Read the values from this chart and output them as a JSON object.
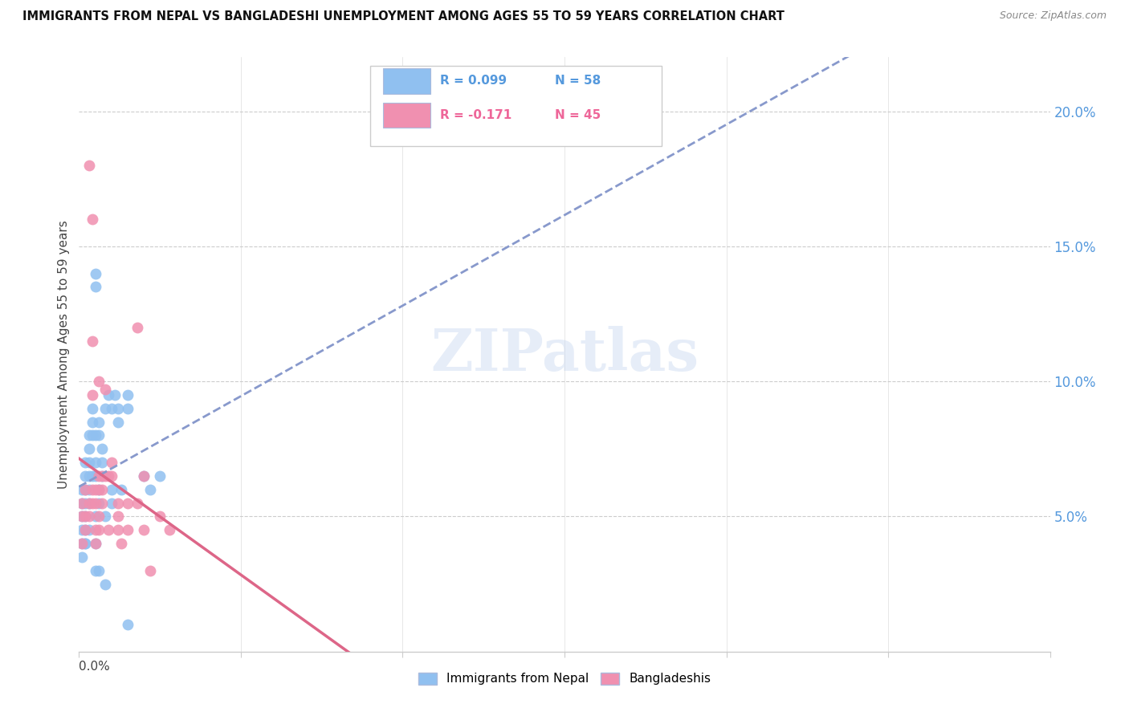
{
  "title": "IMMIGRANTS FROM NEPAL VS BANGLADESHI UNEMPLOYMENT AMONG AGES 55 TO 59 YEARS CORRELATION CHART",
  "source": "Source: ZipAtlas.com",
  "ylabel": "Unemployment Among Ages 55 to 59 years",
  "right_yticks": [
    "5.0%",
    "10.0%",
    "15.0%",
    "20.0%"
  ],
  "right_ytick_vals": [
    0.05,
    0.1,
    0.15,
    0.2
  ],
  "nepal_color": "#90c0f0",
  "bangla_color": "#f090b0",
  "trendline_nepal_color": "#8899cc",
  "trendline_bangla_color": "#dd6688",
  "xlim": [
    0.0,
    0.3
  ],
  "ylim": [
    0.0,
    0.22
  ],
  "nepal_scatter": [
    [
      0.001,
      0.04
    ],
    [
      0.001,
      0.035
    ],
    [
      0.001,
      0.05
    ],
    [
      0.001,
      0.06
    ],
    [
      0.001,
      0.045
    ],
    [
      0.001,
      0.055
    ],
    [
      0.002,
      0.065
    ],
    [
      0.002,
      0.07
    ],
    [
      0.002,
      0.06
    ],
    [
      0.002,
      0.05
    ],
    [
      0.002,
      0.055
    ],
    [
      0.002,
      0.04
    ],
    [
      0.002,
      0.045
    ],
    [
      0.002,
      0.04
    ],
    [
      0.003,
      0.065
    ],
    [
      0.003,
      0.07
    ],
    [
      0.003,
      0.075
    ],
    [
      0.003,
      0.08
    ],
    [
      0.003,
      0.06
    ],
    [
      0.003,
      0.055
    ],
    [
      0.003,
      0.045
    ],
    [
      0.004,
      0.09
    ],
    [
      0.004,
      0.085
    ],
    [
      0.004,
      0.08
    ],
    [
      0.004,
      0.065
    ],
    [
      0.005,
      0.14
    ],
    [
      0.005,
      0.135
    ],
    [
      0.005,
      0.08
    ],
    [
      0.005,
      0.07
    ],
    [
      0.005,
      0.065
    ],
    [
      0.005,
      0.05
    ],
    [
      0.005,
      0.04
    ],
    [
      0.005,
      0.03
    ],
    [
      0.006,
      0.085
    ],
    [
      0.006,
      0.08
    ],
    [
      0.006,
      0.06
    ],
    [
      0.006,
      0.055
    ],
    [
      0.006,
      0.03
    ],
    [
      0.007,
      0.075
    ],
    [
      0.007,
      0.07
    ],
    [
      0.007,
      0.065
    ],
    [
      0.008,
      0.09
    ],
    [
      0.008,
      0.05
    ],
    [
      0.008,
      0.025
    ],
    [
      0.009,
      0.095
    ],
    [
      0.01,
      0.055
    ],
    [
      0.01,
      0.06
    ],
    [
      0.01,
      0.09
    ],
    [
      0.011,
      0.095
    ],
    [
      0.012,
      0.085
    ],
    [
      0.012,
      0.09
    ],
    [
      0.013,
      0.06
    ],
    [
      0.015,
      0.095
    ],
    [
      0.015,
      0.09
    ],
    [
      0.015,
      0.01
    ],
    [
      0.02,
      0.065
    ],
    [
      0.022,
      0.06
    ],
    [
      0.025,
      0.065
    ]
  ],
  "bangla_scatter": [
    [
      0.001,
      0.04
    ],
    [
      0.001,
      0.05
    ],
    [
      0.001,
      0.055
    ],
    [
      0.002,
      0.06
    ],
    [
      0.002,
      0.045
    ],
    [
      0.002,
      0.05
    ],
    [
      0.003,
      0.18
    ],
    [
      0.003,
      0.055
    ],
    [
      0.003,
      0.05
    ],
    [
      0.004,
      0.16
    ],
    [
      0.004,
      0.115
    ],
    [
      0.004,
      0.095
    ],
    [
      0.004,
      0.06
    ],
    [
      0.004,
      0.055
    ],
    [
      0.005,
      0.06
    ],
    [
      0.005,
      0.055
    ],
    [
      0.005,
      0.045
    ],
    [
      0.005,
      0.04
    ],
    [
      0.006,
      0.1
    ],
    [
      0.006,
      0.065
    ],
    [
      0.006,
      0.06
    ],
    [
      0.006,
      0.05
    ],
    [
      0.006,
      0.045
    ],
    [
      0.007,
      0.065
    ],
    [
      0.007,
      0.06
    ],
    [
      0.007,
      0.055
    ],
    [
      0.008,
      0.097
    ],
    [
      0.008,
      0.065
    ],
    [
      0.009,
      0.065
    ],
    [
      0.009,
      0.045
    ],
    [
      0.01,
      0.07
    ],
    [
      0.01,
      0.065
    ],
    [
      0.012,
      0.055
    ],
    [
      0.012,
      0.05
    ],
    [
      0.012,
      0.045
    ],
    [
      0.013,
      0.04
    ],
    [
      0.015,
      0.055
    ],
    [
      0.015,
      0.045
    ],
    [
      0.018,
      0.12
    ],
    [
      0.018,
      0.055
    ],
    [
      0.02,
      0.065
    ],
    [
      0.02,
      0.045
    ],
    [
      0.022,
      0.03
    ],
    [
      0.025,
      0.05
    ],
    [
      0.028,
      0.045
    ]
  ],
  "watermark": "ZIPatlas",
  "bottom_legend_items": [
    "Immigrants from Nepal",
    "Bangladeshis"
  ],
  "legend_r_texts": [
    "R = 0.099",
    "R = -0.171"
  ],
  "legend_n_texts": [
    "N = 58",
    "N = 45"
  ],
  "legend_colors": [
    "#90c0f0",
    "#f090b0"
  ],
  "legend_text_color": "#5599dd",
  "legend_text_color2": "#ee6699"
}
